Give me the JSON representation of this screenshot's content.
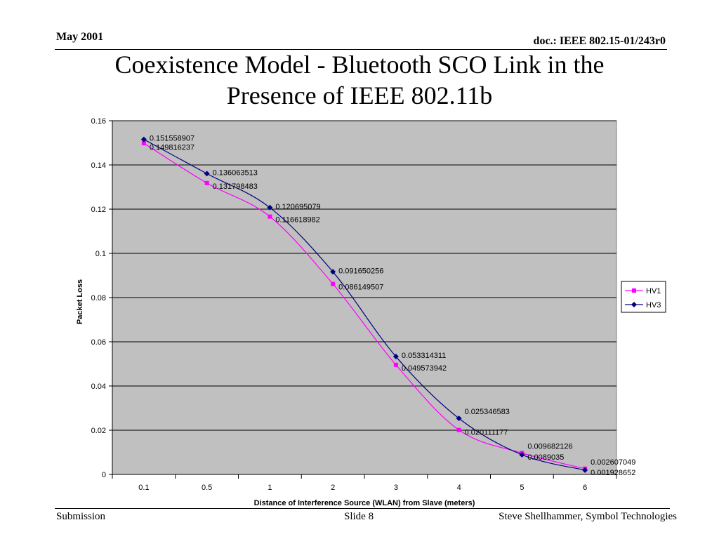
{
  "header": {
    "date": "May 2001",
    "doc": "doc.: IEEE 802.15-01/243r0"
  },
  "title": {
    "line1": "Coexistence Model - Bluetooth SCO Link in the",
    "line2": "Presence of IEEE 802.11b"
  },
  "footer": {
    "left": "Submission",
    "middle": "Slide 8",
    "right": "Steve Shellhammer, Symbol Technologies"
  },
  "colors": {
    "plot_background": "#c0c0c0",
    "hv1": "#ff00ff",
    "hv3": "#000080",
    "gridline": "#000000"
  },
  "chart_data": {
    "type": "line",
    "categories": [
      "0.1",
      "0.5",
      "1",
      "2",
      "3",
      "4",
      "5",
      "6"
    ],
    "series": [
      {
        "name": "HV1",
        "marker": "square",
        "values": [
          0.149816237,
          0.131798483,
          0.116618982,
          0.086149507,
          0.049573942,
          0.020111177,
          0.009682126,
          0.002607049
        ],
        "labels": [
          "0.149816237",
          "0.131798483",
          "0.116618982",
          "0.086149507",
          "0.049573942",
          "0.020111177",
          "0.009682126",
          "0.002607049"
        ]
      },
      {
        "name": "HV3",
        "marker": "diamond",
        "values": [
          0.151558907,
          0.136063513,
          0.120695079,
          0.091650256,
          0.053314311,
          0.025346583,
          0.0089035,
          0.001928652
        ],
        "labels": [
          "0.151558907",
          "0.136063513",
          "0.120695079",
          "0.091650256",
          "0.053314311",
          "0.025346583",
          "0.0089035",
          "0.001928652"
        ]
      }
    ],
    "title": "",
    "xlabel": "Distance of Interference Source (WLAN) from Slave (meters)",
    "ylabel": "Packet Loss",
    "ylim": [
      0,
      0.16
    ],
    "yticks": [
      "0",
      "0.02",
      "0.04",
      "0.06",
      "0.08",
      "0.1",
      "0.12",
      "0.14",
      "0.16"
    ],
    "grid": true,
    "legend": "right"
  }
}
